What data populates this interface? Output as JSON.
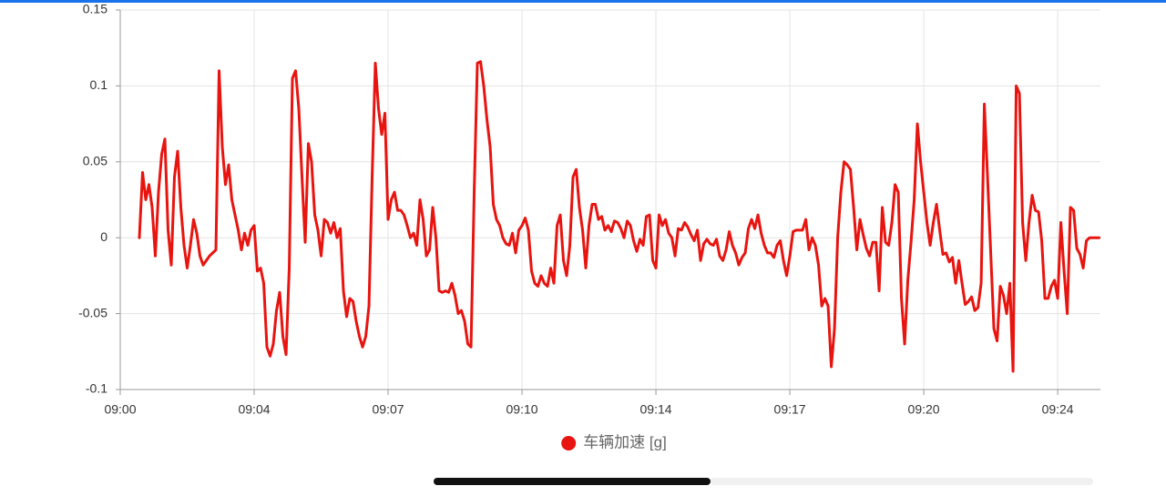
{
  "chart_data": {
    "type": "line",
    "x": [
      30,
      35,
      40,
      45,
      50,
      55,
      60,
      65,
      70,
      75,
      80,
      85,
      90,
      95,
      100,
      105,
      110,
      115,
      120,
      125,
      130,
      135,
      140,
      145,
      150,
      155,
      160,
      165,
      170,
      175,
      180,
      185,
      190,
      195,
      200,
      205,
      210,
      215,
      220,
      225,
      230,
      235,
      240,
      245,
      250,
      255,
      260,
      265,
      270,
      275,
      280,
      285,
      290,
      295,
      300,
      305,
      310,
      315,
      320,
      325,
      330,
      335,
      340,
      345,
      350,
      355,
      360,
      365,
      370,
      375,
      380,
      385,
      390,
      395,
      400,
      405,
      410,
      415,
      420,
      425,
      430,
      435,
      440,
      445,
      450,
      455,
      460,
      465,
      470,
      475,
      480,
      485,
      490,
      495,
      500,
      505,
      510,
      515,
      520,
      525,
      530,
      535,
      540,
      545,
      550,
      555,
      560,
      565,
      570,
      575,
      580,
      585,
      590,
      595,
      600,
      605,
      610,
      615,
      620,
      625,
      630,
      635,
      640,
      645,
      650,
      655,
      660,
      665,
      670,
      675,
      680,
      685,
      690,
      695,
      700,
      705,
      710,
      715,
      720,
      725,
      730,
      735,
      740,
      745,
      750,
      755,
      760,
      765,
      770,
      775,
      780,
      785,
      790,
      795,
      800,
      805,
      810,
      815,
      820,
      825,
      830,
      835,
      840,
      845,
      850,
      855,
      860,
      865,
      870,
      875,
      880,
      885,
      890,
      895,
      900,
      905,
      910,
      915,
      920,
      925,
      930,
      935,
      940,
      945,
      950,
      955,
      960,
      965,
      970,
      975,
      980,
      985,
      990,
      995,
      1000,
      1005,
      1010,
      1015,
      1020,
      1025,
      1030,
      1035,
      1040,
      1045,
      1050,
      1055,
      1060,
      1065,
      1070,
      1075,
      1080,
      1085,
      1090,
      1095,
      1100,
      1105,
      1110,
      1115,
      1120,
      1125,
      1130,
      1135,
      1140,
      1145,
      1150,
      1155,
      1160,
      1165,
      1170,
      1175,
      1180,
      1185,
      1190,
      1195,
      1200,
      1205,
      1210,
      1215,
      1220,
      1225,
      1230,
      1235,
      1240,
      1245,
      1250,
      1255,
      1260,
      1265,
      1270,
      1275,
      1280,
      1285,
      1290,
      1295,
      1300,
      1305,
      1310,
      1315,
      1320,
      1325,
      1330,
      1335,
      1340,
      1345,
      1350,
      1355,
      1360,
      1365,
      1370,
      1375,
      1380,
      1385,
      1390,
      1395,
      1400,
      1405,
      1410,
      1415,
      1420,
      1425,
      1430,
      1435,
      1440,
      1445,
      1450,
      1455,
      1460,
      1465,
      1470,
      1475,
      1480,
      1485,
      1490,
      1495,
      1500,
      1505,
      1510,
      1515,
      1520,
      1525,
      1530,
      1535
    ],
    "series": [
      {
        "name": "车辆加速 [g]",
        "color": "#e8140f",
        "values": [
          0,
          0.043,
          0.025,
          0.035,
          0.02,
          -0.012,
          0.03,
          0.055,
          0.065,
          0.005,
          -0.018,
          0.04,
          0.057,
          0.02,
          -0.005,
          -0.02,
          -0.005,
          0.012,
          0.003,
          -0.012,
          -0.018,
          -0.015,
          -0.012,
          -0.01,
          -0.008,
          0.11,
          0.06,
          0.035,
          0.048,
          0.025,
          0.015,
          0.005,
          -0.008,
          0.003,
          -0.005,
          0.005,
          0.008,
          -0.022,
          -0.02,
          -0.03,
          -0.072,
          -0.078,
          -0.07,
          -0.048,
          -0.036,
          -0.065,
          -0.077,
          -0.02,
          0.105,
          0.11,
          0.085,
          0.04,
          -0.003,
          0.062,
          0.05,
          0.015,
          0.005,
          -0.012,
          0.012,
          0.01,
          0.003,
          0.01,
          0,
          0.006,
          -0.035,
          -0.052,
          -0.04,
          -0.042,
          -0.055,
          -0.065,
          -0.072,
          -0.065,
          -0.045,
          0.04,
          0.115,
          0.085,
          0.068,
          0.082,
          0.012,
          0.025,
          0.03,
          0.018,
          0.018,
          0.015,
          0.008,
          0,
          0.003,
          -0.005,
          0.025,
          0.012,
          -0.012,
          -0.008,
          0.02,
          0,
          -0.035,
          -0.036,
          -0.035,
          -0.036,
          -0.03,
          -0.038,
          -0.05,
          -0.048,
          -0.055,
          -0.07,
          -0.072,
          0.03,
          0.115,
          0.116,
          0.1,
          0.078,
          0.06,
          0.022,
          0.012,
          0.008,
          0,
          -0.004,
          -0.005,
          0.003,
          -0.01,
          0.005,
          0.008,
          0.013,
          0.005,
          -0.022,
          -0.03,
          -0.032,
          -0.025,
          -0.03,
          -0.032,
          -0.02,
          -0.03,
          0.008,
          0.015,
          -0.015,
          -0.025,
          -0.005,
          0.04,
          0.045,
          0.02,
          0.005,
          -0.02,
          0.008,
          0.022,
          0.022,
          0.012,
          0.014,
          0.005,
          0.008,
          0.004,
          0.011,
          0.01,
          0.006,
          0,
          0.011,
          0.008,
          -0.002,
          -0.009,
          -0.001,
          -0.005,
          0.014,
          0.015,
          -0.015,
          -0.02,
          0.015,
          0.008,
          0.012,
          0.003,
          0,
          -0.012,
          0.006,
          0.005,
          0.01,
          0.007,
          0.002,
          -0.002,
          0.005,
          -0.015,
          -0.004,
          -0.001,
          -0.004,
          -0.005,
          -0.001,
          -0.012,
          -0.015,
          -0.008,
          0.004,
          -0.005,
          -0.01,
          -0.018,
          -0.013,
          -0.01,
          0.006,
          0.012,
          0.006,
          0.015,
          0.003,
          -0.005,
          -0.01,
          -0.01,
          -0.013,
          -0.005,
          -0.002,
          -0.015,
          -0.025,
          -0.012,
          0.004,
          0.005,
          0.005,
          0.005,
          0.012,
          -0.008,
          0,
          -0.005,
          -0.018,
          -0.045,
          -0.04,
          -0.045,
          -0.085,
          -0.06,
          0,
          0.03,
          0.05,
          0.048,
          0.045,
          0.02,
          -0.008,
          0.012,
          0.002,
          -0.007,
          -0.012,
          -0.003,
          -0.003,
          -0.035,
          0.02,
          -0.003,
          -0.005,
          0.01,
          0.035,
          0.03,
          -0.04,
          -0.07,
          -0.028,
          -0.003,
          0.025,
          0.075,
          0.05,
          0.03,
          0.01,
          -0.005,
          0.01,
          0.022,
          0.005,
          -0.011,
          -0.01,
          -0.016,
          -0.013,
          -0.03,
          -0.015,
          -0.03,
          -0.044,
          -0.042,
          -0.039,
          -0.048,
          -0.046,
          -0.03,
          0.088,
          0.04,
          -0.01,
          -0.06,
          -0.068,
          -0.032,
          -0.038,
          -0.05,
          -0.03,
          -0.088,
          0.1,
          0.095,
          0.01,
          -0.015,
          0.01,
          0.028,
          0.018,
          0.017,
          -0.002,
          -0.04,
          -0.04,
          -0.032,
          -0.028,
          -0.04,
          0.01,
          -0.022,
          -0.05,
          0.02,
          0.018,
          -0.007,
          -0.011,
          -0.02,
          -0.002,
          0,
          0,
          0,
          0
        ]
      }
    ],
    "xlim": [
      0,
      1537
    ],
    "xticks": [
      {
        "value": 0,
        "label": "09:00"
      },
      {
        "value": 210,
        "label": "09:04"
      },
      {
        "value": 420,
        "label": "09:07"
      },
      {
        "value": 630,
        "label": "09:10"
      },
      {
        "value": 840,
        "label": "09:14"
      },
      {
        "value": 1050,
        "label": "09:17"
      },
      {
        "value": 1260,
        "label": "09:20"
      },
      {
        "value": 1470,
        "label": "09:24"
      }
    ],
    "ylim": [
      -0.1,
      0.15
    ],
    "yticks": [
      -0.1,
      -0.05,
      0,
      0.05,
      0.1,
      0.15
    ],
    "grid": true,
    "legend": "bottom"
  }
}
